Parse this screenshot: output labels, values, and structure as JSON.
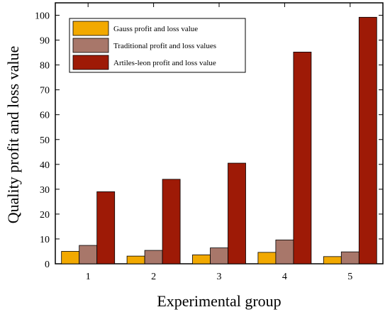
{
  "chart_data": {
    "type": "bar",
    "xlabel": "Experimental group",
    "ylabel": "Quality profit and loss value",
    "categories": [
      "1",
      "2",
      "3",
      "4",
      "5"
    ],
    "ylim": [
      0,
      105
    ],
    "yticks": [
      0,
      10,
      20,
      30,
      40,
      50,
      60,
      70,
      80,
      90,
      100
    ],
    "legend_position": "top-left",
    "grid": false,
    "series": [
      {
        "name": "Gauss profit and loss value",
        "color": "#F2A900",
        "values": [
          5.0,
          3.1,
          3.6,
          4.6,
          2.9
        ]
      },
      {
        "name": "Traditional profit and loss values",
        "color": "#A8776A",
        "values": [
          7.4,
          5.4,
          6.4,
          9.6,
          4.8
        ]
      },
      {
        "name": "Artiles-leon profit and loss value",
        "color": "#9E1A06",
        "values": [
          29,
          34,
          40.5,
          85.2,
          99.2
        ]
      }
    ]
  }
}
